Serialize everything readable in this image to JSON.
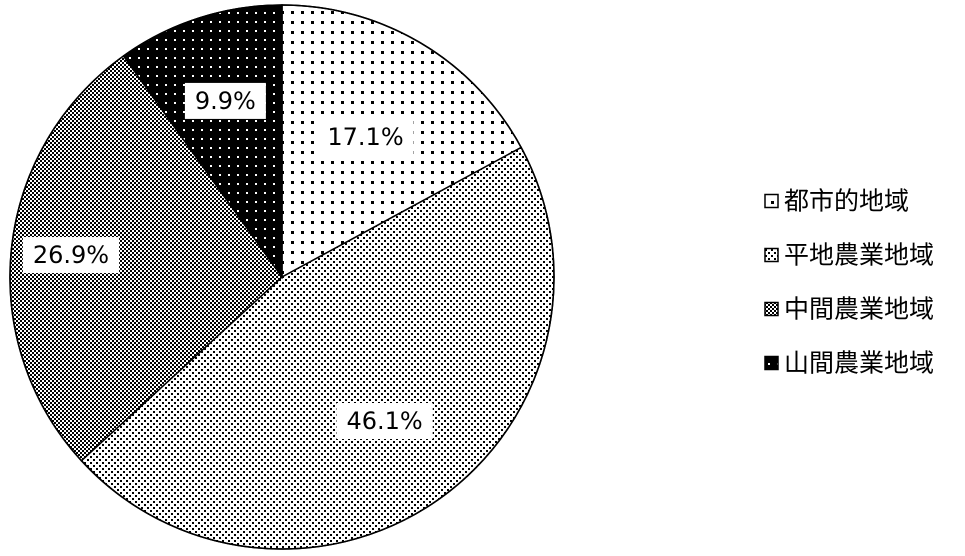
{
  "chart_data": {
    "type": "pie",
    "title": "",
    "slices": [
      {
        "label": "都市的地域",
        "value": 17.1,
        "display": "17.1%",
        "pattern": "sparse-dots"
      },
      {
        "label": "平地農業地域",
        "value": 46.1,
        "display": "46.1%",
        "pattern": "fine-checker"
      },
      {
        "label": "中間農業地域",
        "value": 26.9,
        "display": "26.9%",
        "pattern": "dense-checker"
      },
      {
        "label": "山間農業地域",
        "value": 9.9,
        "display": "9.9%",
        "pattern": "dark-dots"
      }
    ],
    "start_angle_deg": 0,
    "direction": "clockwise",
    "legend_position": "right",
    "colors": {
      "ink": "#000000",
      "paper": "#ffffff"
    }
  }
}
